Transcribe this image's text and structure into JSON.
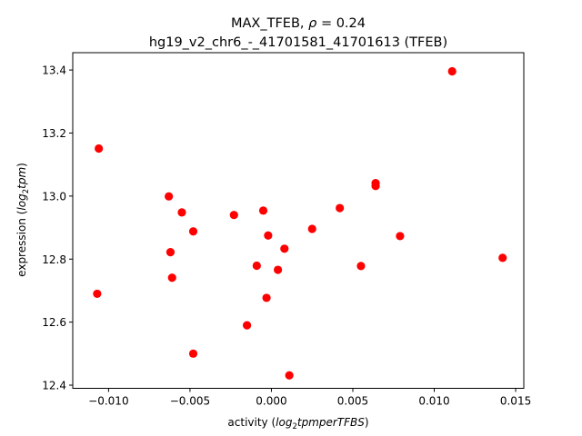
{
  "chart_data": {
    "type": "scatter",
    "title": "MAX_TFEB, ρ = 0.24",
    "subtitle": "hg19_v2_chr6_-_41701581_41701613 (TFEB)",
    "xlabel": "activity (log₂tpmperTFBS)",
    "ylabel": "expression (log₂tpm)",
    "xlim": [
      -0.0122,
      0.0155
    ],
    "ylim": [
      12.39,
      13.455
    ],
    "xticks": [
      -0.01,
      -0.005,
      0.0,
      0.005,
      0.01,
      0.015
    ],
    "xtick_labels": [
      "−0.010",
      "−0.005",
      "0.000",
      "0.005",
      "0.010",
      "0.015"
    ],
    "yticks": [
      12.4,
      12.6,
      12.8,
      13.0,
      13.2,
      13.4
    ],
    "ytick_labels": [
      "12.4",
      "12.6",
      "12.8",
      "13.0",
      "13.2",
      "13.4"
    ],
    "grid": false,
    "marker_color": "#ff0000",
    "points": [
      {
        "x": -0.0106,
        "y": 13.151
      },
      {
        "x": -0.0107,
        "y": 12.69
      },
      {
        "x": -0.0063,
        "y": 12.999
      },
      {
        "x": -0.0062,
        "y": 12.822
      },
      {
        "x": -0.0061,
        "y": 12.741
      },
      {
        "x": -0.0055,
        "y": 12.948
      },
      {
        "x": -0.0048,
        "y": 12.888
      },
      {
        "x": -0.0048,
        "y": 12.5
      },
      {
        "x": -0.0023,
        "y": 12.94
      },
      {
        "x": -0.0015,
        "y": 12.59
      },
      {
        "x": -0.0009,
        "y": 12.779
      },
      {
        "x": -0.0005,
        "y": 12.954
      },
      {
        "x": -0.0002,
        "y": 12.875
      },
      {
        "x": -0.0003,
        "y": 12.677
      },
      {
        "x": 0.0004,
        "y": 12.766
      },
      {
        "x": 0.0008,
        "y": 12.833
      },
      {
        "x": 0.0011,
        "y": 12.431
      },
      {
        "x": 0.0025,
        "y": 12.896
      },
      {
        "x": 0.0042,
        "y": 12.962
      },
      {
        "x": 0.0055,
        "y": 12.778
      },
      {
        "x": 0.0064,
        "y": 13.041
      },
      {
        "x": 0.0064,
        "y": 13.032
      },
      {
        "x": 0.0079,
        "y": 12.873
      },
      {
        "x": 0.0111,
        "y": 13.396
      },
      {
        "x": 0.0142,
        "y": 12.804
      }
    ]
  }
}
